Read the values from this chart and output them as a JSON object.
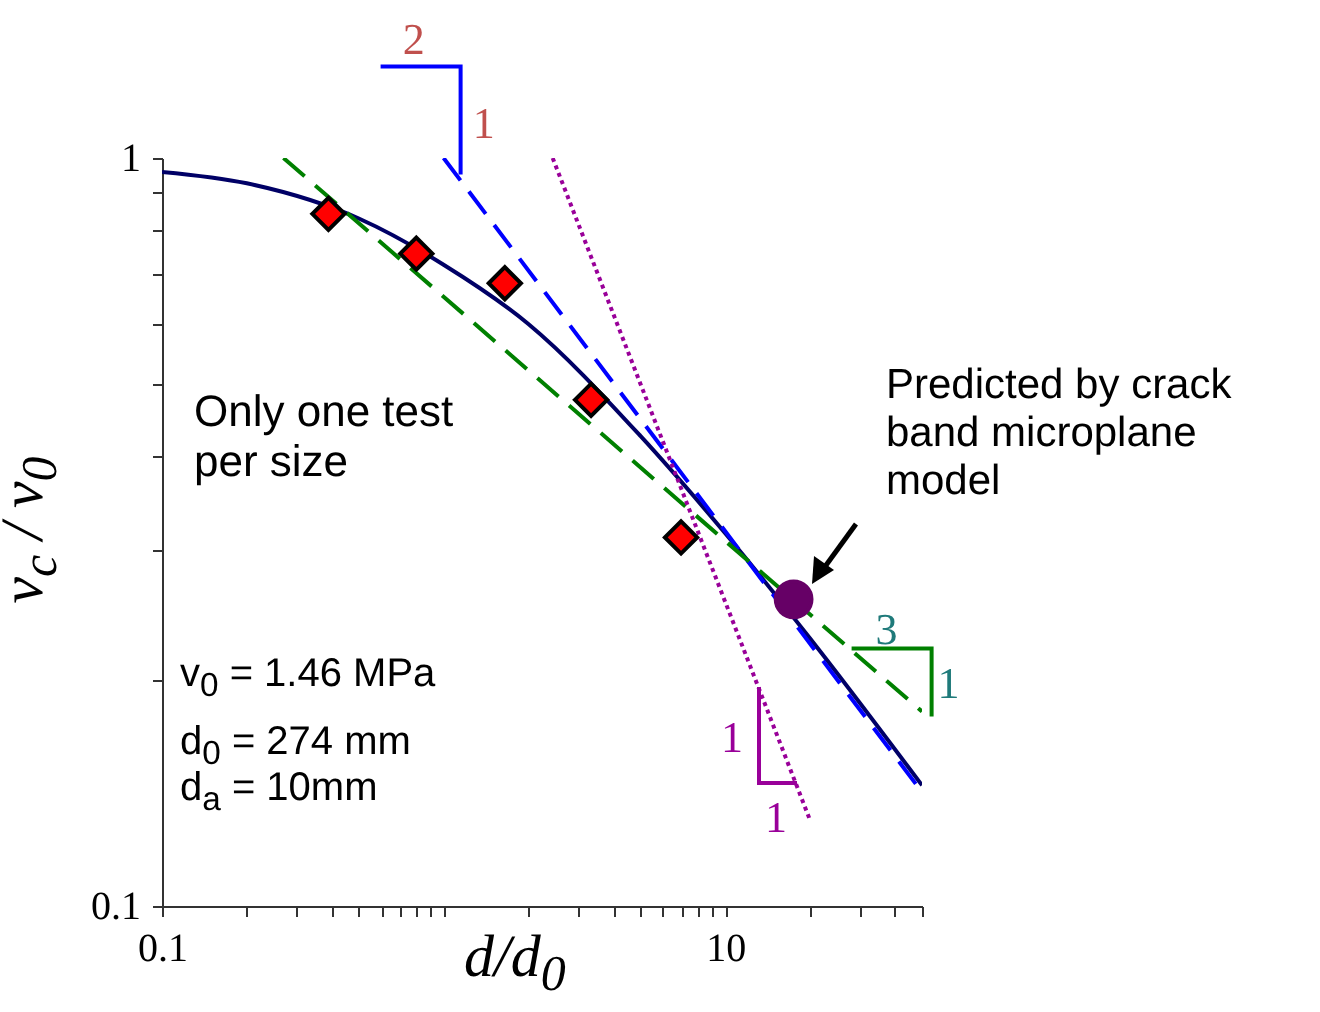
{
  "chart_data": {
    "type": "line",
    "xlabel": "d/d$_{0}$",
    "ylabel": "v$_{c}$ / v$_{0}$",
    "log": "xy",
    "xlim": [
      0.1,
      50
    ],
    "ylim": [
      0.1,
      1
    ],
    "xticks": [
      0.1,
      {
        "value": 0.2,
        "label": null
      },
      {
        "value": 0.3,
        "label": null
      },
      {
        "value": 0.4,
        "label": null
      },
      {
        "value": 0.5,
        "label": null
      },
      {
        "value": 0.6,
        "label": null
      },
      {
        "value": 0.7,
        "label": null
      },
      {
        "value": 0.8,
        "label": null
      },
      {
        "value": 0.9,
        "label": null
      },
      {
        "value": 1,
        "label": null
      },
      {
        "value": 2,
        "label": null
      },
      {
        "value": 3,
        "label": null
      },
      {
        "value": 4,
        "label": null
      },
      {
        "value": 5,
        "label": null
      },
      {
        "value": 6,
        "label": null
      },
      {
        "value": 7,
        "label": null
      },
      {
        "value": 8,
        "label": null
      },
      {
        "value": 9,
        "label": null
      },
      10,
      {
        "value": 20,
        "label": null
      },
      {
        "value": 30,
        "label": null
      },
      {
        "value": 40,
        "label": null
      },
      {
        "value": 50,
        "label": null
      }
    ],
    "yticks": [
      0.1,
      {
        "value": 0.2,
        "label": null
      },
      {
        "value": 0.3,
        "label": null
      },
      {
        "value": 0.4,
        "label": null
      },
      {
        "value": 0.5,
        "label": null
      },
      {
        "value": 0.6,
        "label": null
      },
      {
        "value": 0.7,
        "label": null
      },
      {
        "value": 0.8,
        "label": null
      },
      {
        "value": 0.9,
        "label": null
      },
      1
    ],
    "grid": false,
    "series": [
      {
        "type": "line",
        "color": "#000066",
        "line_style": "solid",
        "x": [
          0.1,
          0.2,
          0.5,
          1,
          2,
          5,
          10,
          20,
          50
        ],
        "values": [
          0.958,
          0.925,
          0.83,
          0.72,
          0.6,
          0.425,
          0.315,
          0.228,
          0.145
        ]
      },
      {
        "type": "line",
        "color": "#0000ff",
        "line_style": "dashed",
        "x": [
          1.0,
          50
        ],
        "values": [
          1.0,
          0.142
        ]
      },
      {
        "type": "line",
        "color": "#008000",
        "line_style": "dashed",
        "x": [
          0.27,
          50
        ],
        "values": [
          1.0,
          0.182
        ]
      },
      {
        "type": "line",
        "color": "#990099",
        "line_style": "dotted",
        "x": [
          2.44,
          19.9
        ],
        "values": [
          1.0,
          0.131
        ]
      },
      {
        "type": "scatter",
        "color": "#ff0000",
        "marker": "diamond",
        "x": [
          0.39,
          0.8,
          1.65,
          3.34,
          6.97
        ],
        "values": [
          0.842,
          0.745,
          0.68,
          0.475,
          0.311
        ]
      },
      {
        "type": "scatter",
        "color": "#660066",
        "marker": "circle",
        "x": [
          17.5
        ],
        "values": [
          0.257
        ]
      }
    ],
    "annotations": [
      "Only one test per size",
      "Predicted by crack band microplane model",
      "v$_{0}$ = 1.46 MPa",
      "d$_{0}$ = 274 mm",
      "d$_{a}$ = 10mm",
      {
        "text": "2",
        "x": 1.15,
        "y": 0.95
      },
      {
        "text": "1",
        "x": 1.15,
        "y": 0.95
      },
      {
        "text": "3",
        "x": 28.1,
        "y": 0.221
      },
      {
        "text": "1",
        "x": 28.1,
        "y": 0.221
      },
      {
        "text": "1",
        "x": 18.0,
        "y": 0.146
      },
      {
        "text": "1",
        "x": 18.0,
        "y": 0.146
      }
    ]
  }
}
